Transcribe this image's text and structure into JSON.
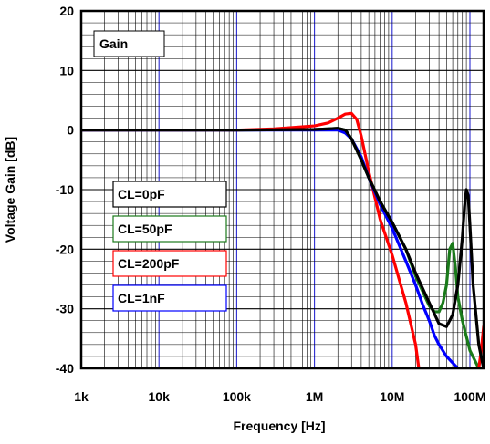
{
  "chart_data": {
    "type": "line",
    "title": "",
    "xlabel": "Frequency [Hz]",
    "ylabel": "Voltage Gain [dB]",
    "xscale": "log",
    "xlim": [
      1000,
      150000000
    ],
    "ylim": [
      -40,
      20
    ],
    "grid": true,
    "x_ticks": [
      {
        "value": 1000,
        "label": "1k"
      },
      {
        "value": 10000,
        "label": "10k"
      },
      {
        "value": 100000,
        "label": "100k"
      },
      {
        "value": 1000000,
        "label": "1M"
      },
      {
        "value": 10000000,
        "label": "10M"
      },
      {
        "value": 100000000,
        "label": "100M"
      }
    ],
    "y_ticks": [
      {
        "value": 20,
        "label": "20"
      },
      {
        "value": 10,
        "label": "10"
      },
      {
        "value": 0,
        "label": "0"
      },
      {
        "value": -10,
        "label": "-10"
      },
      {
        "value": -20,
        "label": "-20"
      },
      {
        "value": -30,
        "label": "-30"
      },
      {
        "value": -40,
        "label": "-40"
      }
    ],
    "annotation": "Gain",
    "legend_placement": "left",
    "series": [
      {
        "name": "CL=0pF",
        "color": "#000000",
        "x": [
          1000,
          100000,
          1000000,
          1500000,
          2000000,
          2500000,
          3000000,
          4000000,
          5000000,
          7000000,
          10000000,
          15000000,
          20000000,
          30000000,
          40000000,
          50000000,
          60000000,
          70000000,
          80000000,
          85000000,
          90000000,
          95000000,
          100000000,
          110000000,
          130000000,
          150000000
        ],
        "values": [
          0,
          0,
          0.1,
          0.2,
          0.3,
          0,
          -1.5,
          -5,
          -8,
          -12,
          -15.5,
          -20,
          -24,
          -29,
          -32.5,
          -33,
          -31,
          -26,
          -18,
          -13,
          -10,
          -11,
          -16,
          -26,
          -36,
          -40
        ]
      },
      {
        "name": "CL=50pF",
        "color": "#1a7a1a",
        "x": [
          1000,
          100000,
          1000000,
          1500000,
          2000000,
          2500000,
          3000000,
          4000000,
          5000000,
          7000000,
          10000000,
          15000000,
          20000000,
          30000000,
          35000000,
          40000000,
          45000000,
          50000000,
          55000000,
          60000000,
          65000000,
          70000000,
          80000000,
          100000000,
          130000000
        ],
        "values": [
          0,
          0,
          0.1,
          0.2,
          0.3,
          0,
          -1.5,
          -5,
          -8,
          -12,
          -15.5,
          -20,
          -24.5,
          -29.5,
          -30.5,
          -30.5,
          -29,
          -26,
          -20,
          -19,
          -23,
          -28,
          -32,
          -37,
          -40
        ]
      },
      {
        "name": "CL=200pF",
        "color": "#ff0000",
        "x": [
          1000,
          100000,
          300000,
          1000000,
          1500000,
          2000000,
          2500000,
          3000000,
          3500000,
          4000000,
          5000000,
          7000000,
          10000000,
          15000000,
          20000000,
          22000000,
          130000000,
          140000000,
          150000000
        ],
        "values": [
          0,
          0,
          0.2,
          0.7,
          1.2,
          2,
          2.7,
          2.8,
          1.8,
          -1,
          -7,
          -15,
          -21,
          -29,
          -36,
          -40,
          -40,
          -37,
          -33
        ]
      },
      {
        "name": "CL=1nF",
        "color": "#0000ff",
        "x": [
          1000,
          100000,
          1000000,
          1500000,
          2000000,
          2500000,
          3000000,
          4000000,
          5000000,
          7000000,
          10000000,
          15000000,
          20000000,
          25000000,
          30000000,
          35000000,
          40000000,
          50000000,
          70000000,
          100000000,
          150000000
        ],
        "values": [
          0,
          0,
          0,
          0,
          0,
          -0.5,
          -1.5,
          -4.5,
          -8,
          -12.5,
          -16.5,
          -22,
          -26,
          -29.5,
          -32,
          -34.5,
          -36,
          -38,
          -40,
          -40,
          -40
        ]
      }
    ]
  }
}
